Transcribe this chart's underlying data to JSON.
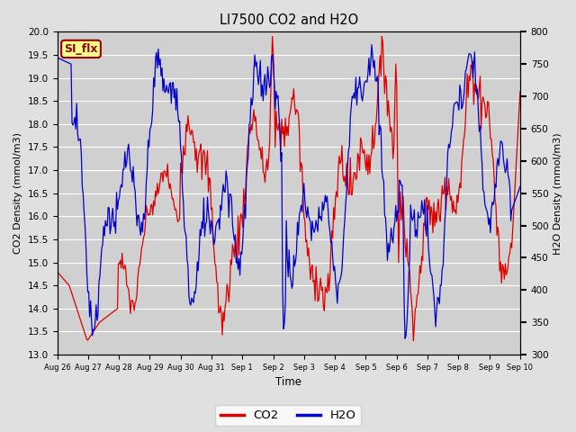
{
  "title": "LI7500 CO2 and H2O",
  "xlabel": "Time",
  "ylabel_left": "CO2 Density (mmol/m3)",
  "ylabel_right": "H2O Density (mmol/m3)",
  "ylim_left": [
    13.0,
    20.0
  ],
  "ylim_right": [
    300,
    800
  ],
  "yticks_left": [
    13.0,
    13.5,
    14.0,
    14.5,
    15.0,
    15.5,
    16.0,
    16.5,
    17.0,
    17.5,
    18.0,
    18.5,
    19.0,
    19.5,
    20.0
  ],
  "yticks_right": [
    300,
    350,
    400,
    450,
    500,
    550,
    600,
    650,
    700,
    750,
    800
  ],
  "xtick_labels": [
    "Aug 26",
    "Aug 27",
    "Aug 28",
    "Aug 29",
    "Aug 30",
    "Aug 31",
    "Sep 1",
    "Sep 2",
    "Sep 3",
    "Sep 4",
    "Sep 5",
    "Sep 6",
    "Sep 7",
    "Sep 8",
    "Sep 9",
    "Sep 10"
  ],
  "co2_color": "#dd0000",
  "h2o_color": "#0000cc",
  "fig_bg_color": "#e0e0e0",
  "plot_bg_color": "#d0d0d0",
  "grid_color": "#ffffff",
  "label_text": "SI_flx",
  "label_bg": "#ffff88",
  "label_border": "#990000",
  "label_text_color": "#990000",
  "legend_co2": "CO2",
  "legend_h2o": "H2O",
  "n_points": 500,
  "linewidth": 0.9
}
